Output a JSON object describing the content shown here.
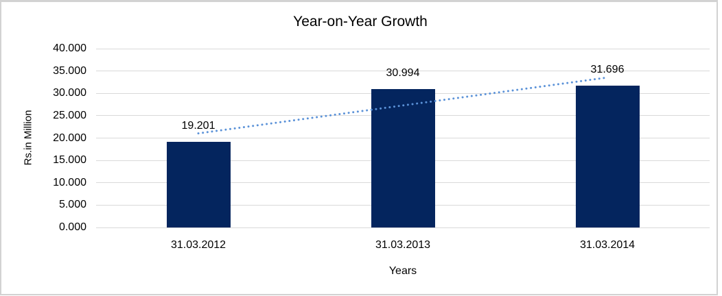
{
  "frame": {
    "border_color": "#d2d2d2",
    "background": "#ffffff"
  },
  "chart_data": {
    "type": "bar",
    "title": "Year-on-Year Growth",
    "categories": [
      "31.03.2012",
      "31.03.2013",
      "31.03.2014"
    ],
    "values": [
      19201,
      30994,
      31696
    ],
    "value_labels": [
      "19.201",
      "30.994",
      "31.696"
    ],
    "xlabel": "Years",
    "ylabel": "Rs.in Million",
    "ylim": [
      0,
      40000
    ],
    "ytick_step": 5000,
    "ytick_labels": [
      "0.000",
      "5.000",
      "10.000",
      "15.000",
      "20.000",
      "25.000",
      "30.000",
      "35.000",
      "40.000"
    ],
    "grid": true,
    "legend": "none",
    "bar_color": "#04255e",
    "gridline_color": "#d9d9d9",
    "text_color": "#000000",
    "trendline": {
      "type": "linear",
      "style": "dotted",
      "color": "#5b92d8"
    }
  }
}
